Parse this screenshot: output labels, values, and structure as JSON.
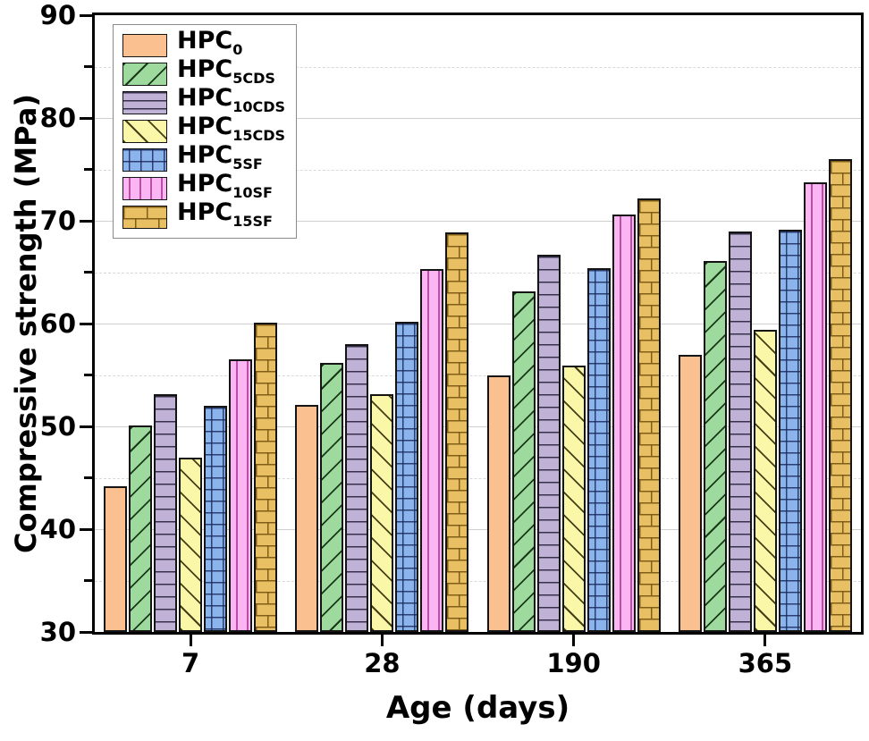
{
  "chart_data": {
    "type": "bar",
    "title": "",
    "xlabel": "Age (days)",
    "ylabel": "Compressive strength (MPa)",
    "categories": [
      "7",
      "28",
      "190",
      "365"
    ],
    "ylim": [
      30,
      90
    ],
    "yticks_major": [
      30,
      40,
      50,
      60,
      70,
      80,
      90
    ],
    "yticks_minor": [
      35,
      45,
      55,
      65,
      75,
      85
    ],
    "grid": {
      "major": "solid light gray",
      "minor": "dashed light gray"
    },
    "legend_position": "top-left inside plot",
    "axis_color": "#000000",
    "series": [
      {
        "name": "HPC0",
        "label_base": "HPC",
        "label_sub": "0",
        "pattern": "solid",
        "fill": "#FAC08F",
        "edge": "#141414",
        "values": [
          44.2,
          52.1,
          55.0,
          57.0
        ]
      },
      {
        "name": "HPC5CDS",
        "label_base": "HPC",
        "label_sub": "5CDS",
        "pattern": "diagonal-forward",
        "fill": "#9EDA9E",
        "edge": "#141414",
        "values": [
          50.1,
          56.2,
          63.1,
          66.1
        ]
      },
      {
        "name": "HPC10CDS",
        "label_base": "HPC",
        "label_sub": "10CDS",
        "pattern": "horizontal",
        "fill": "#C0B2D6",
        "edge": "#141414",
        "values": [
          53.1,
          58.0,
          66.7,
          69.0
        ]
      },
      {
        "name": "HPC15CDS",
        "label_base": "HPC",
        "label_sub": "15CDS",
        "pattern": "diagonal-back",
        "fill": "#FAF7A8",
        "edge": "#141414",
        "values": [
          47.0,
          53.1,
          55.9,
          59.4
        ]
      },
      {
        "name": "HPC5SF",
        "label_base": "HPC",
        "label_sub": "5SF",
        "pattern": "grid",
        "fill": "#8CB4EC",
        "edge": "#141414",
        "values": [
          52.0,
          60.2,
          65.4,
          69.1
        ]
      },
      {
        "name": "HPC10SF",
        "label_base": "HPC",
        "label_sub": "10SF",
        "pattern": "vertical",
        "fill": "#FBB5F3",
        "edge": "#141414",
        "values": [
          56.5,
          65.3,
          70.6,
          73.7
        ]
      },
      {
        "name": "HPC15SF",
        "label_base": "HPC",
        "label_sub": "15SF",
        "pattern": "brick",
        "fill": "#E8C063",
        "edge": "#141414",
        "values": [
          60.1,
          68.9,
          72.2,
          76.0
        ]
      }
    ]
  }
}
